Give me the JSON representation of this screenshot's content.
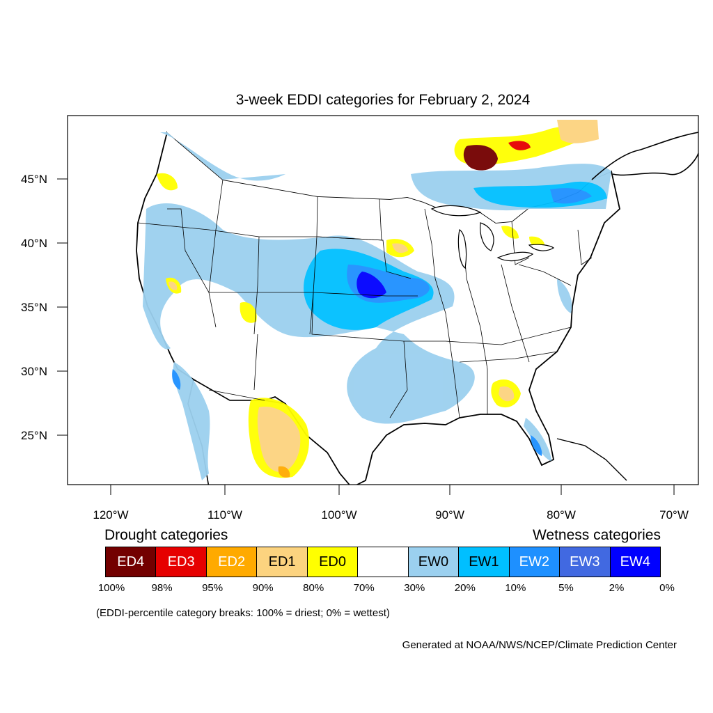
{
  "title": "3-week EDDI categories for February 2, 2024",
  "map": {
    "lat_labels": [
      "45°N",
      "40°N",
      "35°N",
      "30°N",
      "25°N"
    ],
    "lon_labels": [
      "120°W",
      "110°W",
      "100°W",
      "90°W",
      "80°W",
      "70°W"
    ]
  },
  "legend": {
    "drought_heading": "Drought categories",
    "wetness_heading": "Wetness categories",
    "categories": [
      {
        "label": "ED4",
        "color": "#730000",
        "text_color": "#ffffff"
      },
      {
        "label": "ED3",
        "color": "#e60000",
        "text_color": "#ffffff"
      },
      {
        "label": "ED2",
        "color": "#ffaa00",
        "text_color": "#ffffff"
      },
      {
        "label": "ED1",
        "color": "#fcd37f",
        "text_color": "#000000"
      },
      {
        "label": "ED0",
        "color": "#ffff00",
        "text_color": "#000000"
      },
      {
        "label": "",
        "color": "#ffffff",
        "text_color": "#000000"
      },
      {
        "label": "EW0",
        "color": "#9bd0ef",
        "text_color": "#000000"
      },
      {
        "label": "EW1",
        "color": "#00bfff",
        "text_color": "#000000"
      },
      {
        "label": "EW2",
        "color": "#1e90ff",
        "text_color": "#ffffff"
      },
      {
        "label": "EW3",
        "color": "#4169e1",
        "text_color": "#ffffff"
      },
      {
        "label": "EW4",
        "color": "#0000ff",
        "text_color": "#ffffff"
      }
    ],
    "ticks": [
      "100%",
      "98%",
      "95%",
      "90%",
      "80%",
      "70%",
      "30%",
      "20%",
      "10%",
      "5%",
      "2%",
      "0%"
    ],
    "note": "(EDDI-percentile category breaks: 100% = driest; 0% = wettest)"
  },
  "credit": "Generated at NOAA/NWS/NCEP/Climate Prediction Center"
}
